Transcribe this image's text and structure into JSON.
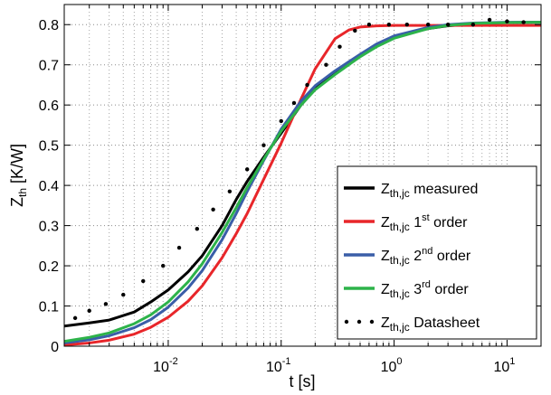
{
  "chart_data": {
    "type": "line",
    "xlabel": "t [s]",
    "ylabel_main": "Z",
    "ylabel_sub": "th",
    "ylabel_unit": " [K/W]",
    "xscale": "log",
    "xlim": [
      0.0012,
      20
    ],
    "ylim": [
      0,
      0.85
    ],
    "x_ticks": [
      {
        "value": 0.01,
        "base": "10",
        "exp": "-2"
      },
      {
        "value": 0.1,
        "base": "10",
        "exp": "-1"
      },
      {
        "value": 1,
        "base": "10",
        "exp": "0"
      },
      {
        "value": 10,
        "base": "10",
        "exp": "1"
      }
    ],
    "y_ticks": [
      "0",
      "0.1",
      "0.2",
      "0.3",
      "0.4",
      "0.5",
      "0.6",
      "0.7",
      "0.8"
    ],
    "grid": true,
    "legend_position": "bottom-right",
    "series": [
      {
        "main": "Z",
        "sub": "th,jc",
        "sup": "",
        "rest": " measured",
        "style": "line",
        "color": "#000000",
        "points": [
          [
            0.0012,
            0.05
          ],
          [
            0.002,
            0.058
          ],
          [
            0.003,
            0.065
          ],
          [
            0.005,
            0.085
          ],
          [
            0.007,
            0.11
          ],
          [
            0.01,
            0.14
          ],
          [
            0.015,
            0.185
          ],
          [
            0.02,
            0.225
          ],
          [
            0.03,
            0.3
          ],
          [
            0.04,
            0.365
          ],
          [
            0.05,
            0.41
          ],
          [
            0.07,
            0.47
          ],
          [
            0.1,
            0.53
          ],
          [
            0.15,
            0.6
          ],
          [
            0.2,
            0.64
          ],
          [
            0.3,
            0.68
          ],
          [
            0.5,
            0.725
          ],
          [
            0.7,
            0.75
          ],
          [
            1,
            0.77
          ],
          [
            2,
            0.79
          ],
          [
            3,
            0.797
          ],
          [
            5,
            0.802
          ],
          [
            10,
            0.805
          ],
          [
            20,
            0.806
          ]
        ]
      },
      {
        "main": "Z",
        "sub": "th,jc",
        "sup": "st",
        "pre_sup": " 1",
        "rest": " order",
        "style": "line",
        "color": "#e8262a",
        "points": [
          [
            0.0012,
            0.003
          ],
          [
            0.002,
            0.008
          ],
          [
            0.003,
            0.015
          ],
          [
            0.005,
            0.03
          ],
          [
            0.007,
            0.047
          ],
          [
            0.01,
            0.072
          ],
          [
            0.015,
            0.112
          ],
          [
            0.02,
            0.15
          ],
          [
            0.03,
            0.22
          ],
          [
            0.04,
            0.28
          ],
          [
            0.05,
            0.33
          ],
          [
            0.07,
            0.415
          ],
          [
            0.1,
            0.505
          ],
          [
            0.15,
            0.615
          ],
          [
            0.2,
            0.69
          ],
          [
            0.3,
            0.765
          ],
          [
            0.4,
            0.787
          ],
          [
            0.5,
            0.794
          ],
          [
            0.7,
            0.797
          ],
          [
            1,
            0.798
          ],
          [
            20,
            0.798
          ]
        ]
      },
      {
        "main": "Z",
        "sub": "th,jc",
        "sup": "nd",
        "pre_sup": " 2",
        "rest": " order",
        "style": "line",
        "color": "#3a5ea8",
        "points": [
          [
            0.0012,
            0.008
          ],
          [
            0.002,
            0.016
          ],
          [
            0.003,
            0.026
          ],
          [
            0.005,
            0.046
          ],
          [
            0.007,
            0.066
          ],
          [
            0.01,
            0.097
          ],
          [
            0.015,
            0.145
          ],
          [
            0.02,
            0.188
          ],
          [
            0.03,
            0.265
          ],
          [
            0.04,
            0.33
          ],
          [
            0.05,
            0.385
          ],
          [
            0.07,
            0.462
          ],
          [
            0.1,
            0.54
          ],
          [
            0.15,
            0.61
          ],
          [
            0.2,
            0.648
          ],
          [
            0.3,
            0.685
          ],
          [
            0.5,
            0.726
          ],
          [
            0.7,
            0.752
          ],
          [
            1,
            0.772
          ],
          [
            2,
            0.793
          ],
          [
            3,
            0.8
          ],
          [
            5,
            0.804
          ],
          [
            10,
            0.806
          ],
          [
            20,
            0.806
          ]
        ]
      },
      {
        "main": "Z",
        "sub": "th,jc",
        "sup": "rd",
        "pre_sup": " 3",
        "rest": " order",
        "style": "line",
        "color": "#2db34a",
        "points": [
          [
            0.0012,
            0.012
          ],
          [
            0.002,
            0.022
          ],
          [
            0.003,
            0.033
          ],
          [
            0.005,
            0.056
          ],
          [
            0.007,
            0.078
          ],
          [
            0.01,
            0.11
          ],
          [
            0.015,
            0.16
          ],
          [
            0.02,
            0.205
          ],
          [
            0.03,
            0.283
          ],
          [
            0.04,
            0.345
          ],
          [
            0.05,
            0.395
          ],
          [
            0.07,
            0.465
          ],
          [
            0.1,
            0.535
          ],
          [
            0.15,
            0.6
          ],
          [
            0.2,
            0.638
          ],
          [
            0.3,
            0.676
          ],
          [
            0.5,
            0.72
          ],
          [
            0.7,
            0.745
          ],
          [
            1,
            0.766
          ],
          [
            2,
            0.79
          ],
          [
            3,
            0.798
          ],
          [
            5,
            0.803
          ],
          [
            10,
            0.805
          ],
          [
            20,
            0.806
          ]
        ]
      },
      {
        "main": "Z",
        "sub": "th,jc",
        "sup": "",
        "rest": " Datasheet",
        "style": "markers",
        "color": "#000000",
        "points": [
          [
            0.0015,
            0.07
          ],
          [
            0.002,
            0.088
          ],
          [
            0.0028,
            0.105
          ],
          [
            0.004,
            0.128
          ],
          [
            0.006,
            0.162
          ],
          [
            0.009,
            0.2
          ],
          [
            0.0125,
            0.245
          ],
          [
            0.018,
            0.292
          ],
          [
            0.025,
            0.34
          ],
          [
            0.035,
            0.385
          ],
          [
            0.05,
            0.44
          ],
          [
            0.07,
            0.5
          ],
          [
            0.1,
            0.56
          ],
          [
            0.13,
            0.605
          ],
          [
            0.17,
            0.65
          ],
          [
            0.25,
            0.7
          ],
          [
            0.33,
            0.745
          ],
          [
            0.45,
            0.785
          ],
          [
            0.6,
            0.8
          ],
          [
            0.9,
            0.8
          ],
          [
            1.3,
            0.8
          ],
          [
            2,
            0.8
          ],
          [
            3,
            0.8
          ],
          [
            5,
            0.8
          ],
          [
            7,
            0.812
          ],
          [
            10,
            0.808
          ],
          [
            14,
            0.806
          ]
        ]
      }
    ]
  }
}
